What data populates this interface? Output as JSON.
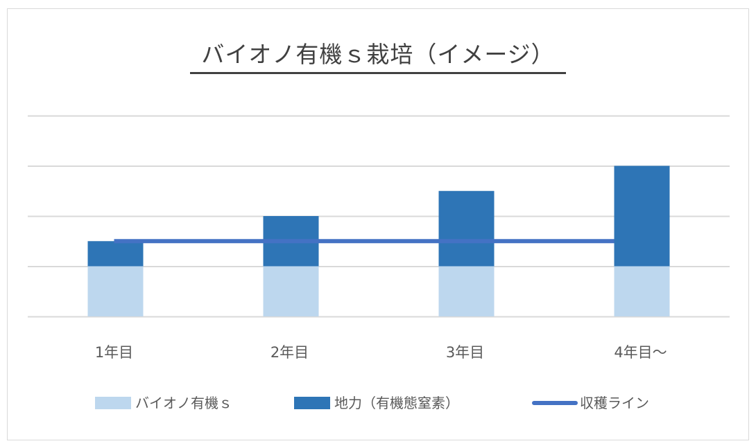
{
  "chart_data": {
    "type": "bar",
    "title": "バイオノ有機ｓ栽培（イメージ）",
    "categories": [
      "1年目",
      "2年目",
      "3年目",
      "4年目～"
    ],
    "series": [
      {
        "name": "バイオノ有機ｓ",
        "kind": "stacked-bar",
        "values": [
          1,
          1,
          1,
          1
        ],
        "color": "#bdd7ee"
      },
      {
        "name": "地力（有機態窒素）",
        "kind": "stacked-bar",
        "values": [
          0.5,
          1,
          1.5,
          2
        ],
        "color": "#2e75b6"
      },
      {
        "name": "収穫ライン",
        "kind": "line",
        "values": [
          1.5,
          1.5,
          1.5,
          1.5
        ],
        "color": "#4472c4"
      }
    ],
    "ylim": [
      0,
      4
    ],
    "grid": true,
    "legend": "bottom"
  }
}
